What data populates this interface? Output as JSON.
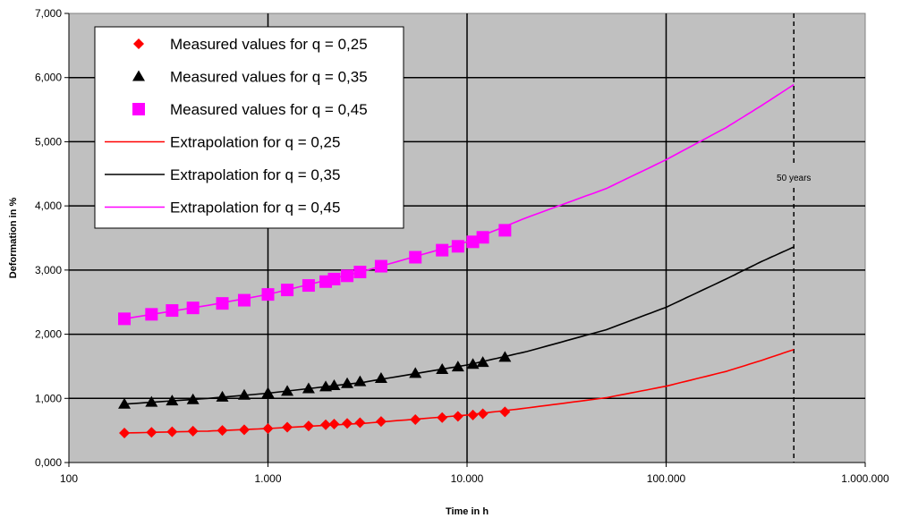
{
  "chart_data": {
    "type": "scatter",
    "title": "",
    "xlabel": "Time in h",
    "ylabel": "Deformation in %",
    "xscale": "log",
    "xlim": [
      100,
      1000000
    ],
    "ylim": [
      0,
      7
    ],
    "xticks": [
      "100",
      "1.000",
      "10.000",
      "100.000",
      "1.000.000"
    ],
    "yticks": [
      "0,000",
      "1,000",
      "2,000",
      "3,000",
      "4,000",
      "5,000",
      "6,000",
      "7,000"
    ],
    "grid": true,
    "legend_position": "top-left",
    "plot_background": "#c0c0c0",
    "annotation": {
      "text": "50 years",
      "x": 438000
    },
    "series": [
      {
        "name": "Measured values for q = 0,25",
        "kind": "points",
        "marker": "diamond",
        "color": "#ff0000",
        "x": [
          190,
          260,
          330,
          420,
          590,
          760,
          1000,
          1250,
          1600,
          1950,
          2150,
          2500,
          2900,
          3700,
          5500,
          7500,
          9000,
          10700,
          12000,
          15500
        ],
        "y": [
          0.46,
          0.47,
          0.48,
          0.49,
          0.5,
          0.51,
          0.53,
          0.55,
          0.57,
          0.59,
          0.6,
          0.61,
          0.62,
          0.64,
          0.67,
          0.7,
          0.72,
          0.74,
          0.76,
          0.79
        ]
      },
      {
        "name": "Measured values for q = 0,35",
        "kind": "points",
        "marker": "triangle",
        "color": "#000000",
        "x": [
          190,
          260,
          330,
          420,
          590,
          760,
          1000,
          1250,
          1600,
          1950,
          2150,
          2500,
          2900,
          3700,
          5500,
          7500,
          9000,
          10700,
          12000,
          15500
        ],
        "y": [
          0.91,
          0.94,
          0.96,
          0.98,
          1.02,
          1.05,
          1.08,
          1.11,
          1.15,
          1.18,
          1.2,
          1.23,
          1.26,
          1.31,
          1.39,
          1.45,
          1.49,
          1.53,
          1.56,
          1.64
        ]
      },
      {
        "name": "Measured values for q = 0,45",
        "kind": "points",
        "marker": "square",
        "color": "#ff00ff",
        "x": [
          190,
          260,
          330,
          420,
          590,
          760,
          1000,
          1250,
          1600,
          1950,
          2150,
          2500,
          2900,
          3700,
          5500,
          7500,
          9000,
          10700,
          12000,
          15500
        ],
        "y": [
          2.24,
          2.31,
          2.37,
          2.41,
          2.48,
          2.53,
          2.62,
          2.69,
          2.76,
          2.82,
          2.86,
          2.91,
          2.97,
          3.06,
          3.2,
          3.31,
          3.37,
          3.44,
          3.51,
          3.62
        ]
      },
      {
        "name": "Extrapolation for q = 0,25",
        "kind": "line",
        "color": "#ff0000",
        "x": [
          190,
          500,
          1000,
          3000,
          10000,
          20000,
          50000,
          100000,
          200000,
          300000,
          438000
        ],
        "y": [
          0.46,
          0.49,
          0.53,
          0.61,
          0.74,
          0.85,
          1.01,
          1.19,
          1.42,
          1.59,
          1.76
        ]
      },
      {
        "name": "Extrapolation for q = 0,35",
        "kind": "line",
        "color": "#000000",
        "x": [
          190,
          500,
          1000,
          3000,
          10000,
          20000,
          50000,
          100000,
          200000,
          300000,
          438000
        ],
        "y": [
          0.91,
          1.0,
          1.08,
          1.25,
          1.52,
          1.73,
          2.07,
          2.42,
          2.86,
          3.13,
          3.36
        ]
      },
      {
        "name": "Extrapolation for q = 0,45",
        "kind": "line",
        "color": "#ff00ff",
        "x": [
          190,
          500,
          1000,
          3000,
          10000,
          20000,
          50000,
          100000,
          200000,
          300000,
          438000
        ],
        "y": [
          2.24,
          2.45,
          2.62,
          2.98,
          3.44,
          3.82,
          4.27,
          4.72,
          5.22,
          5.56,
          5.89
        ]
      }
    ]
  }
}
